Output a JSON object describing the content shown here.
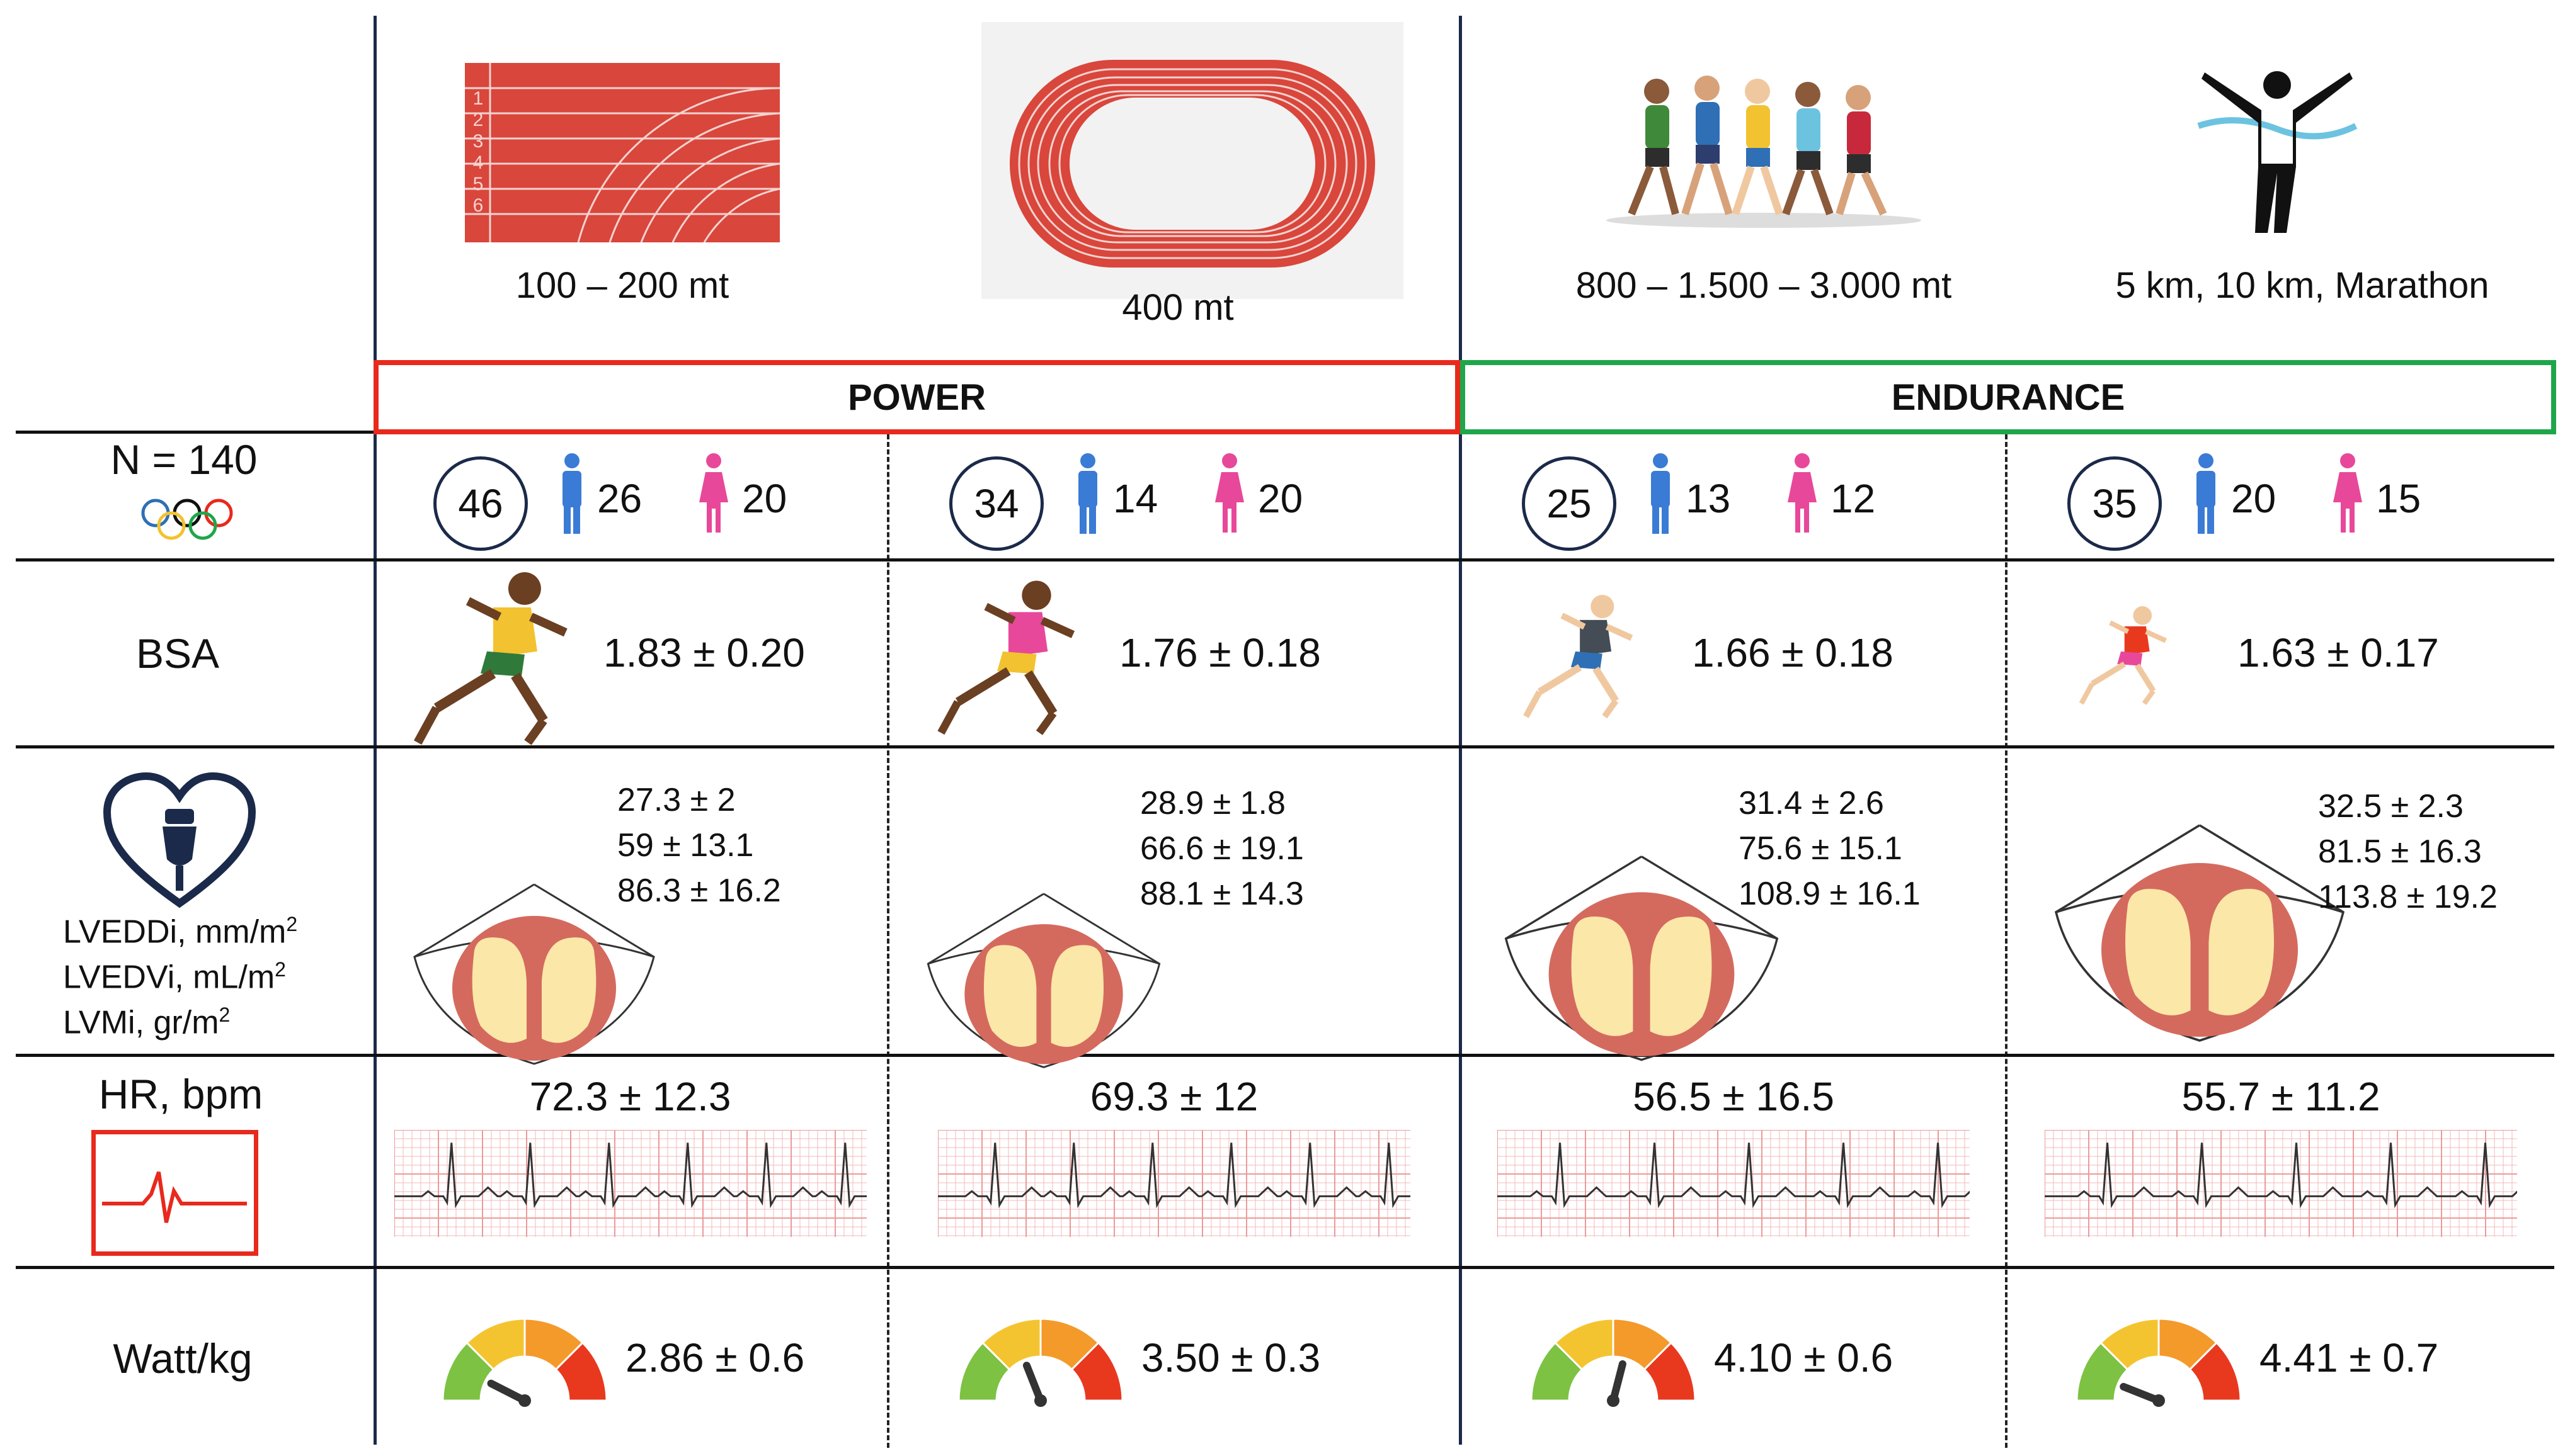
{
  "distances": [
    "100 – 200 mt",
    "400 mt",
    "800 – 1.500 – 3.000 mt",
    "5 km, 10 km, Marathon"
  ],
  "track_lanes": [
    "1",
    "2",
    "3",
    "4",
    "5",
    "6"
  ],
  "sections": {
    "power": "POWER",
    "endurance": "ENDURANCE"
  },
  "colors": {
    "power": "#e8291c",
    "endurance": "#1fa64a",
    "male": "#3a7bd5",
    "female": "#e8489a",
    "navy": "#1b2a4a",
    "track": "#d9463c"
  },
  "rows": {
    "n_label": "N = 140",
    "bsa_label": "BSA",
    "echo_labels": [
      "LVEDDi, mm/m",
      "LVEDVi, mL/m",
      "LVMi, gr/m"
    ],
    "echo_sup": "2",
    "hr_label": "HR, bpm",
    "watt_label": "Watt/kg"
  },
  "groups": [
    {
      "n": "46",
      "male": "26",
      "female": "20",
      "bsa": "1.83 ± 0.20",
      "echo": [
        "27.3 ± 2",
        "59 ± 13.1",
        "86.3 ± 16.2"
      ],
      "hr": "72.3 ± 12.3",
      "watt": "2.86 ± 0.6",
      "gauge_value": 0.15
    },
    {
      "n": "34",
      "male": "14",
      "female": "20",
      "bsa": "1.76 ± 0.18",
      "echo": [
        "28.9 ± 1.8",
        "66.6 ± 19.1",
        "88.1 ± 14.3"
      ],
      "hr": "69.3 ± 12",
      "watt": "3.50 ± 0.3",
      "gauge_value": 0.38
    },
    {
      "n": "25",
      "male": "13",
      "female": "12",
      "bsa": "1.66 ± 0.18",
      "echo": [
        "31.4 ± 2.6",
        "75.6 ± 15.1",
        "108.9 ± 16.1"
      ],
      "hr": "56.5 ± 16.5",
      "watt": "4.10 ± 0.6",
      "gauge_value": 0.58
    },
    {
      "n": "35",
      "male": "20",
      "female": "15",
      "bsa": "1.63 ± 0.17",
      "echo": [
        "32.5 ± 2.3",
        "81.5 ± 16.3",
        "113.8 ± 19.2"
      ],
      "hr": "55.7 ± 11.2",
      "watt": "4.41 ± 0.7",
      "gauge_value": 0.12
    }
  ]
}
